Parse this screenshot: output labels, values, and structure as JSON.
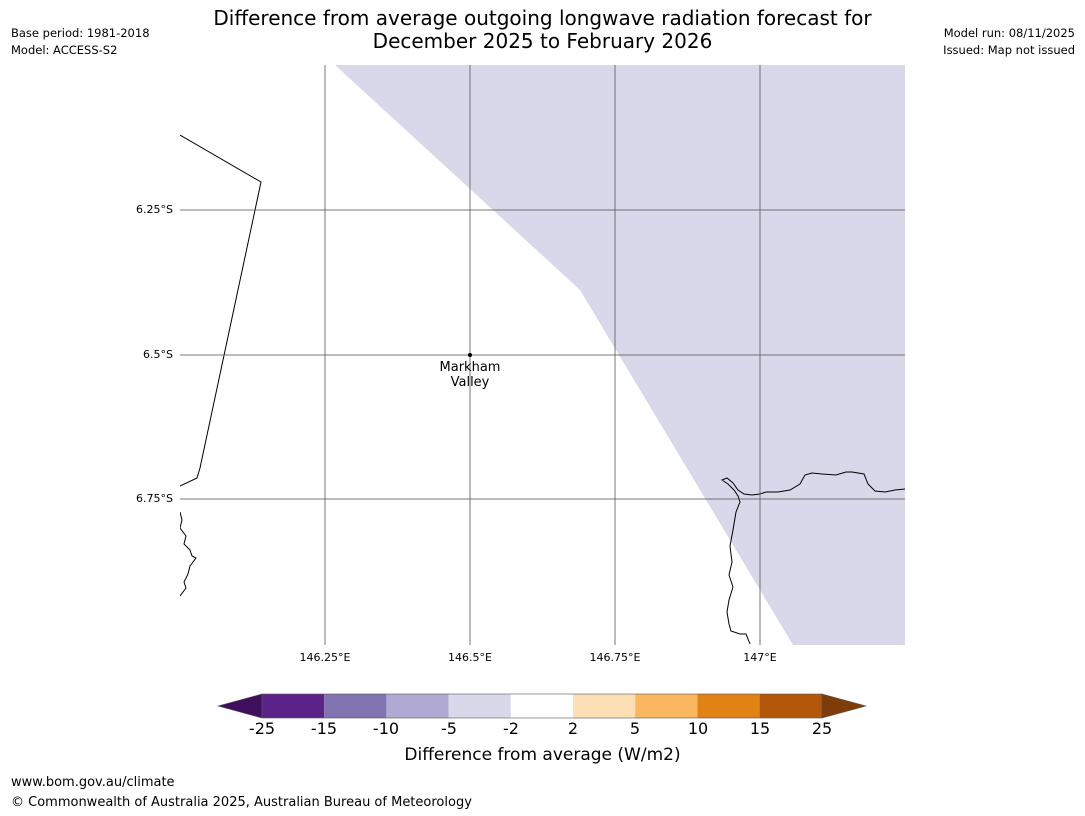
{
  "title": {
    "line1": "Difference from average outgoing longwave radiation forecast for",
    "line2": "December 2025 to February 2026"
  },
  "meta": {
    "base_period": "Base period: 1981-2018",
    "model": "Model: ACCESS-S2",
    "model_run": "Model run: 08/11/2025",
    "issued": "Issued: Map not issued"
  },
  "map": {
    "lat_labels": [
      "6.25°S",
      "6.5°S",
      "6.75°S"
    ],
    "lon_labels": [
      "146.25°E",
      "146.5°E",
      "146.75°E",
      "147°E"
    ],
    "place": {
      "line1": "Markham",
      "line2": "Valley"
    },
    "region_fill_category": "-5 to -2",
    "region_fill_color": "#d8d8ea"
  },
  "colorbar": {
    "title": "Difference from average (W/m2)",
    "ticks": [
      "-25",
      "-15",
      "-10",
      "-5",
      "-2",
      "2",
      "5",
      "10",
      "15",
      "25"
    ],
    "colors": [
      "#3f0f5d",
      "#5b2389",
      "#8172b0",
      "#b0a9d1",
      "#d8d8ea",
      "#ffffff",
      "#fddfb5",
      "#fbb660",
      "#e08214",
      "#b35808",
      "#7f3b08"
    ]
  },
  "footer": {
    "url": "www.bom.gov.au/climate",
    "copyright": "© Commonwealth of Australia 2025, Australian Bureau of Meteorology"
  }
}
